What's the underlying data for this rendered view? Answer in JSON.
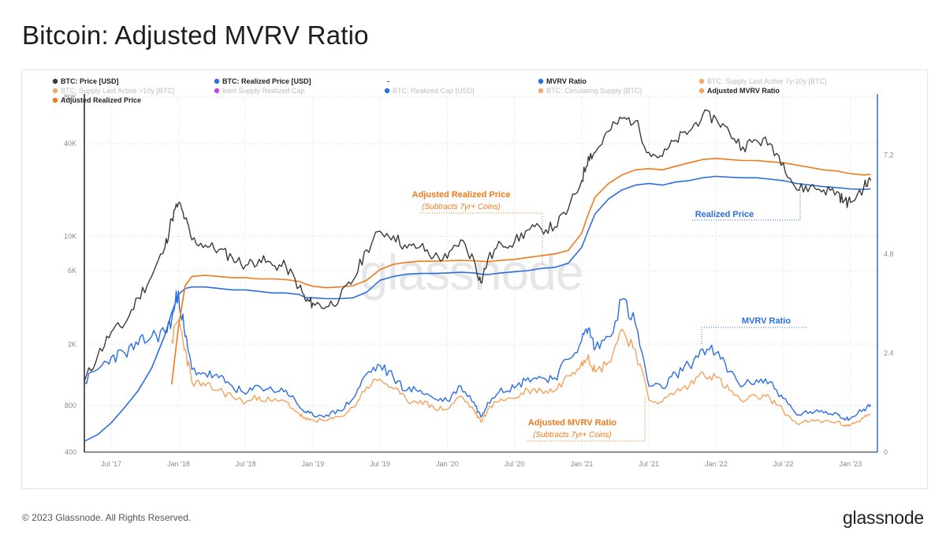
{
  "page": {
    "title": "Bitcoin: Adjusted MVRV Ratio",
    "footer": "© 2023 Glassnode. All Rights Reserved.",
    "brand": "glassnode",
    "watermark": "glassnode"
  },
  "colors": {
    "price": "#3a3a3a",
    "realized": "#2a6ee0",
    "adjusted_realized": "#f07a1a",
    "mvrv": "#2a6ee0",
    "adjusted_mvrv": "#f5a15a",
    "axis_right": "#2a6ee0"
  },
  "legend": [
    {
      "label": "BTC: Price [USD]",
      "color": "#3a3a3a",
      "active": true
    },
    {
      "label": "BTC: Realized Price [USD]",
      "color": "#2a6ee0",
      "active": true
    },
    {
      "label": "-",
      "color": "",
      "active": true
    },
    {
      "label": "MVRV Ratio",
      "color": "#2a6ee0",
      "active": true
    },
    {
      "label": "BTC: Supply Last Active 7y-10y [BTC]",
      "color": "#f7a66a",
      "active": false
    },
    {
      "label": "BTC: Supply Last Active >10y [BTC]",
      "color": "#f7a66a",
      "active": false
    },
    {
      "label": "Inert Supply Realized Cap",
      "color": "#c149e6",
      "active": false
    },
    {
      "label": "BTC: Realized Cap [USD]",
      "color": "#2a6ee0",
      "active": false
    },
    {
      "label": "BTC: Circulating Supply [BTC]",
      "color": "#f7a66a",
      "active": false
    },
    {
      "label": "Adjusted MVRV Ratio",
      "color": "#f5a15a",
      "active": true
    },
    {
      "label": "Adjusted Realized Price",
      "color": "#f07a1a",
      "active": true
    }
  ],
  "annotations": {
    "adjusted_realized_title": "Adjusted Realized Price",
    "adjusted_realized_sub": "(Subtracts 7yr+ Coins)",
    "realized_price": "Realized Price",
    "mvrv_ratio": "MVRV Ratio",
    "adjusted_mvrv_title": "Adjusted MVRV Ratio",
    "adjusted_mvrv_sub": "(Subtracts 7yr+ Coins)"
  },
  "chart_data": {
    "type": "line",
    "title": "Bitcoin: Adjusted MVRV Ratio",
    "x_ticks": [
      "Jul '17",
      "Jan '18",
      "Jul '18",
      "Jan '19",
      "Jul '19",
      "Jan '20",
      "Jul '20",
      "Jan '21",
      "Jul '21",
      "Jan '22",
      "Jul '22",
      "Jan '23"
    ],
    "xlim": [
      2017.3,
      2023.2
    ],
    "y_left": {
      "scale": "log",
      "ticks": [
        400,
        800,
        2000,
        6000,
        10000,
        40000,
        80000
      ],
      "tick_labels": [
        "400",
        "800",
        "2K",
        "6K",
        "10K",
        "40K",
        "80K"
      ],
      "ylim": [
        400,
        80000
      ]
    },
    "y_right": {
      "scale": "linear",
      "ticks": [
        0,
        2.4,
        4.8,
        7.2
      ],
      "tick_labels": [
        "0",
        "2.4",
        "4.8",
        "7.2"
      ],
      "ylim": [
        0,
        8.6
      ]
    },
    "grid": true,
    "legend_position": "top",
    "x": [
      2017.3,
      2017.4,
      2017.5,
      2017.6,
      2017.7,
      2017.8,
      2017.9,
      2017.95,
      2018.0,
      2018.05,
      2018.1,
      2018.2,
      2018.3,
      2018.4,
      2018.5,
      2018.6,
      2018.7,
      2018.8,
      2018.9,
      2018.95,
      2019.0,
      2019.1,
      2019.2,
      2019.3,
      2019.4,
      2019.5,
      2019.6,
      2019.7,
      2019.8,
      2019.9,
      2020.0,
      2020.1,
      2020.2,
      2020.25,
      2020.3,
      2020.4,
      2020.5,
      2020.6,
      2020.7,
      2020.8,
      2020.9,
      2021.0,
      2021.05,
      2021.1,
      2021.2,
      2021.3,
      2021.4,
      2021.5,
      2021.6,
      2021.7,
      2021.8,
      2021.9,
      2022.0,
      2022.1,
      2022.2,
      2022.3,
      2022.4,
      2022.5,
      2022.6,
      2022.7,
      2022.8,
      2022.9,
      2022.95,
      2023.0,
      2023.1,
      2023.15
    ],
    "series": [
      {
        "name": "BTC: Price [USD]",
        "axis": "left",
        "values": [
          1150,
          1700,
          2400,
          2700,
          4000,
          5500,
          8500,
          13000,
          16500,
          13000,
          9500,
          8800,
          8200,
          7300,
          6500,
          7100,
          6500,
          6400,
          4700,
          3800,
          3700,
          3500,
          4000,
          5200,
          8200,
          10800,
          10100,
          8400,
          8600,
          7400,
          7200,
          9500,
          7000,
          5000,
          7000,
          9000,
          9200,
          11000,
          11200,
          11500,
          15000,
          23000,
          33000,
          35000,
          48000,
          58000,
          56000,
          35000,
          33000,
          42000,
          48000,
          61000,
          58000,
          47000,
          38000,
          42000,
          40000,
          30000,
          20000,
          21000,
          20000,
          19500,
          16800,
          16600,
          21000,
          23000
        ]
      },
      {
        "name": "BTC: Realized Price [USD]",
        "axis": "left",
        "values": [
          470,
          520,
          620,
          780,
          1000,
          1400,
          2300,
          3200,
          4200,
          4600,
          4700,
          4700,
          4600,
          4500,
          4500,
          4400,
          4300,
          4300,
          4200,
          4000,
          4000,
          3950,
          3950,
          4000,
          4350,
          5200,
          5500,
          5700,
          5750,
          5750,
          5800,
          5850,
          5800,
          5700,
          5650,
          5800,
          5900,
          6000,
          6200,
          6300,
          6700,
          8500,
          11000,
          14000,
          17500,
          20000,
          21500,
          22000,
          21500,
          22500,
          23000,
          24000,
          24500,
          24200,
          24000,
          24000,
          23500,
          23000,
          22000,
          21500,
          21000,
          20700,
          20500,
          20300,
          20200,
          20300
        ]
      },
      {
        "name": "Adjusted Realized Price",
        "axis": "left",
        "values": [
          null,
          null,
          null,
          null,
          null,
          null,
          null,
          1100,
          2600,
          4800,
          5500,
          5600,
          5500,
          5400,
          5400,
          5300,
          5300,
          5250,
          5100,
          4900,
          4750,
          4650,
          4700,
          4800,
          5200,
          6100,
          6600,
          6800,
          6900,
          6900,
          6950,
          7000,
          6950,
          6900,
          6850,
          7000,
          7100,
          7300,
          7500,
          7700,
          8100,
          10500,
          14000,
          18000,
          22000,
          25000,
          27000,
          27500,
          27000,
          28500,
          30000,
          31500,
          32000,
          31500,
          31000,
          31000,
          30500,
          30000,
          29000,
          28000,
          27000,
          26500,
          26000,
          25500,
          25000,
          25200
        ]
      },
      {
        "name": "MVRV Ratio",
        "axis": "right",
        "values": [
          1.7,
          2.0,
          2.3,
          2.4,
          2.6,
          2.8,
          2.9,
          3.2,
          3.9,
          2.8,
          2.0,
          1.9,
          1.8,
          1.6,
          1.4,
          1.6,
          1.5,
          1.5,
          1.1,
          0.95,
          0.9,
          0.9,
          1.0,
          1.3,
          1.9,
          2.1,
          1.8,
          1.5,
          1.5,
          1.3,
          1.25,
          1.6,
          1.2,
          0.85,
          1.2,
          1.55,
          1.55,
          1.8,
          1.8,
          1.8,
          2.25,
          2.7,
          3.0,
          2.5,
          2.8,
          3.7,
          3.1,
          1.6,
          1.55,
          1.9,
          2.1,
          2.5,
          2.4,
          1.95,
          1.6,
          1.75,
          1.7,
          1.3,
          0.9,
          0.98,
          0.95,
          0.94,
          0.82,
          0.82,
          1.04,
          1.15
        ]
      },
      {
        "name": "Adjusted MVRV Ratio",
        "axis": "right",
        "values": [
          null,
          null,
          null,
          null,
          null,
          null,
          null,
          2.7,
          3.2,
          2.5,
          1.7,
          1.6,
          1.5,
          1.35,
          1.2,
          1.34,
          1.23,
          1.22,
          0.92,
          0.78,
          0.78,
          0.76,
          0.85,
          1.08,
          1.58,
          1.77,
          1.53,
          1.24,
          1.25,
          1.07,
          1.04,
          1.36,
          1.01,
          0.73,
          1.02,
          1.29,
          1.3,
          1.51,
          1.49,
          1.49,
          1.85,
          2.19,
          2.36,
          1.94,
          2.18,
          2.98,
          2.48,
          1.27,
          1.22,
          1.47,
          1.6,
          1.94,
          1.81,
          1.49,
          1.22,
          1.35,
          1.31,
          1.0,
          0.69,
          0.75,
          0.74,
          0.74,
          0.65,
          0.65,
          0.84,
          0.91
        ]
      }
    ]
  }
}
